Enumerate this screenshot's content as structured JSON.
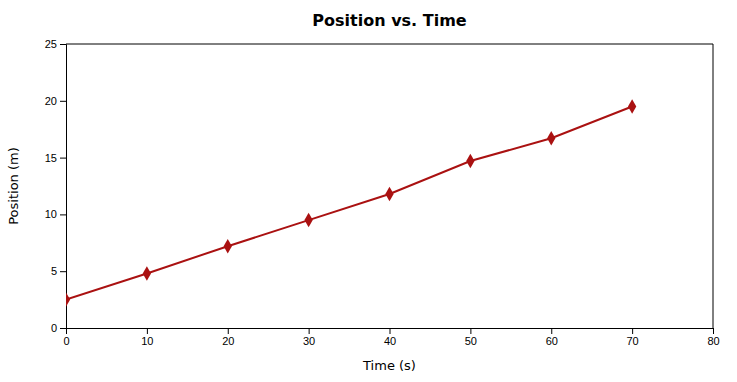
{
  "chart_data": {
    "type": "line",
    "title": "Position vs. Time",
    "xlabel": "Time (s)",
    "ylabel": "Position (m)",
    "x": [
      0,
      10,
      20,
      30,
      40,
      50,
      60,
      70
    ],
    "values": [
      2.5,
      4.8,
      7.2,
      9.5,
      11.8,
      14.7,
      16.7,
      19.5
    ],
    "color": "#aa1111",
    "marker": "diamond",
    "xlim": [
      0,
      80
    ],
    "ylim": [
      0,
      25
    ],
    "xticks": [
      0,
      10,
      20,
      30,
      40,
      50,
      60,
      70,
      80
    ],
    "yticks": [
      0,
      5,
      10,
      15,
      20,
      25
    ],
    "grid": false
  }
}
